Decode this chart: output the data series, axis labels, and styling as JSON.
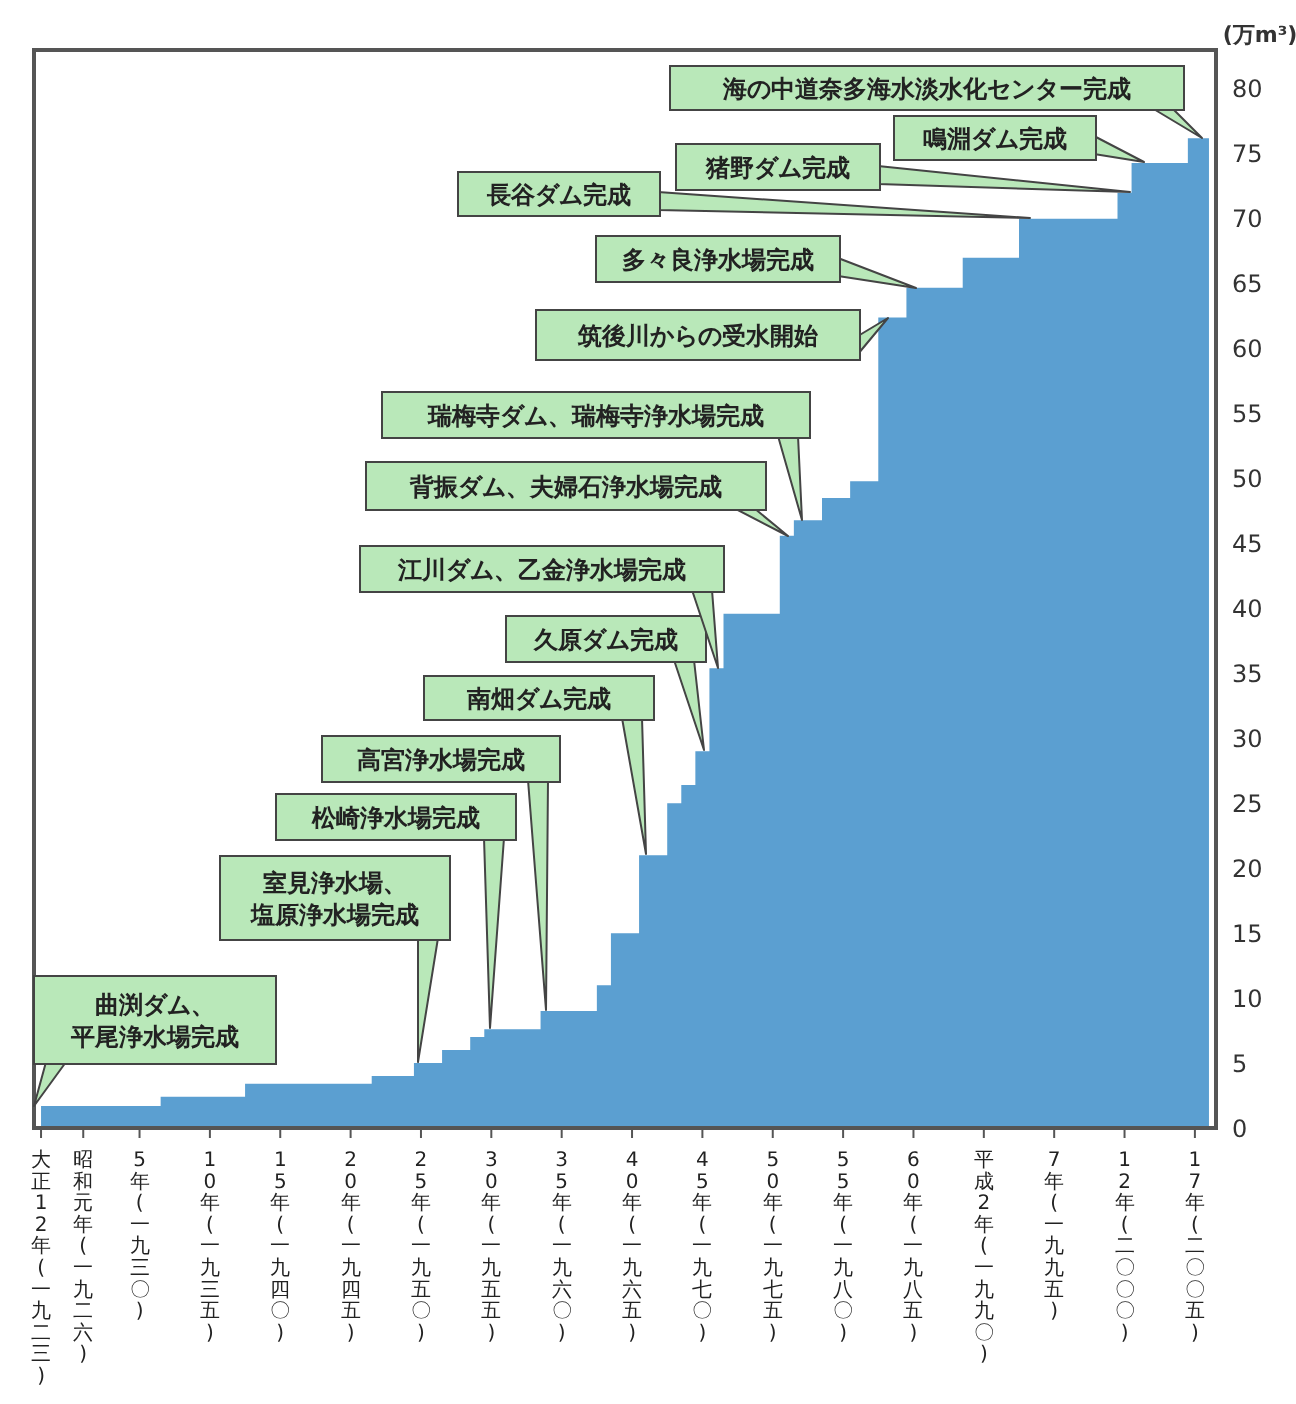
{
  "chart_data": {
    "type": "area",
    "ylabel": "(万m³)",
    "categories": [
      "大正12年(一九二三)",
      null,
      null,
      "昭和元年(一九二六)",
      null,
      null,
      null,
      "5年(一九三〇)",
      null,
      null,
      null,
      null,
      "10年(一九三五)",
      null,
      null,
      null,
      null,
      "15年(一九四〇)",
      null,
      null,
      null,
      null,
      "20年(一九四五)",
      null,
      null,
      null,
      null,
      "25年(一九五〇)",
      null,
      null,
      null,
      null,
      "30年(一九五五)",
      null,
      null,
      null,
      null,
      "35年(一九六〇)",
      null,
      null,
      null,
      null,
      "40年(一九六五)",
      null,
      null,
      null,
      null,
      "45年(一九七〇)",
      null,
      null,
      null,
      null,
      "50年(一九七五)",
      null,
      null,
      null,
      null,
      "55年(一九八〇)",
      null,
      null,
      null,
      null,
      "60年(一九八五)",
      null,
      null,
      null,
      null,
      "平成2年(一九九〇)",
      null,
      null,
      null,
      null,
      "7年(一九九五)",
      null,
      null,
      null,
      null,
      "12年(二〇〇〇)",
      null,
      null,
      null,
      null,
      "17年(二〇〇五)",
      null
    ],
    "values": [
      1.7,
      1.7,
      1.7,
      1.7,
      1.7,
      1.7,
      1.7,
      1.7,
      1.7,
      2.4,
      2.4,
      2.4,
      2.4,
      2.4,
      2.4,
      3.4,
      3.4,
      3.4,
      3.4,
      3.4,
      3.4,
      3.4,
      3.4,
      3.4,
      4,
      4,
      4,
      5,
      5,
      6,
      6,
      7,
      7.6,
      7.6,
      7.6,
      7.6,
      9,
      9,
      9,
      9,
      11,
      15,
      15,
      21,
      21,
      25,
      26.4,
      29,
      35.4,
      39.6,
      39.6,
      39.6,
      39.6,
      45.6,
      46.8,
      46.8,
      48.5,
      48.5,
      49.8,
      49.8,
      62.4,
      62.4,
      64.7,
      64.7,
      64.7,
      64.7,
      67,
      67,
      67,
      67,
      70,
      70,
      70,
      70,
      70,
      70,
      70,
      72,
      74.3,
      74.3,
      74.3,
      74.3,
      76.2,
      76.2
    ],
    "color": "#5b9fd1",
    "ylim": [
      0,
      83
    ],
    "yticks": [
      0,
      5,
      10,
      15,
      20,
      25,
      30,
      35,
      40,
      45,
      50,
      55,
      60,
      65,
      70,
      75,
      80
    ],
    "annotations": [
      "曲渕ダム、平尾浄水場完成",
      "室見浄水場、塩原浄水場完成",
      "松崎浄水場完成",
      "高宮浄水場完成",
      "南畑ダム完成",
      "久原ダム完成",
      "江川ダム、乙金浄水場完成",
      "背振ダム、夫婦石浄水場完成",
      "瑞梅寺ダム、瑞梅寺浄水場完成",
      "筑後川からの受水開始",
      "多々良浄水場完成",
      "長谷ダム完成",
      "猪野ダム完成",
      "鳴淵ダム完成",
      "海の中道奈多海水淡水化センター完成"
    ]
  }
}
